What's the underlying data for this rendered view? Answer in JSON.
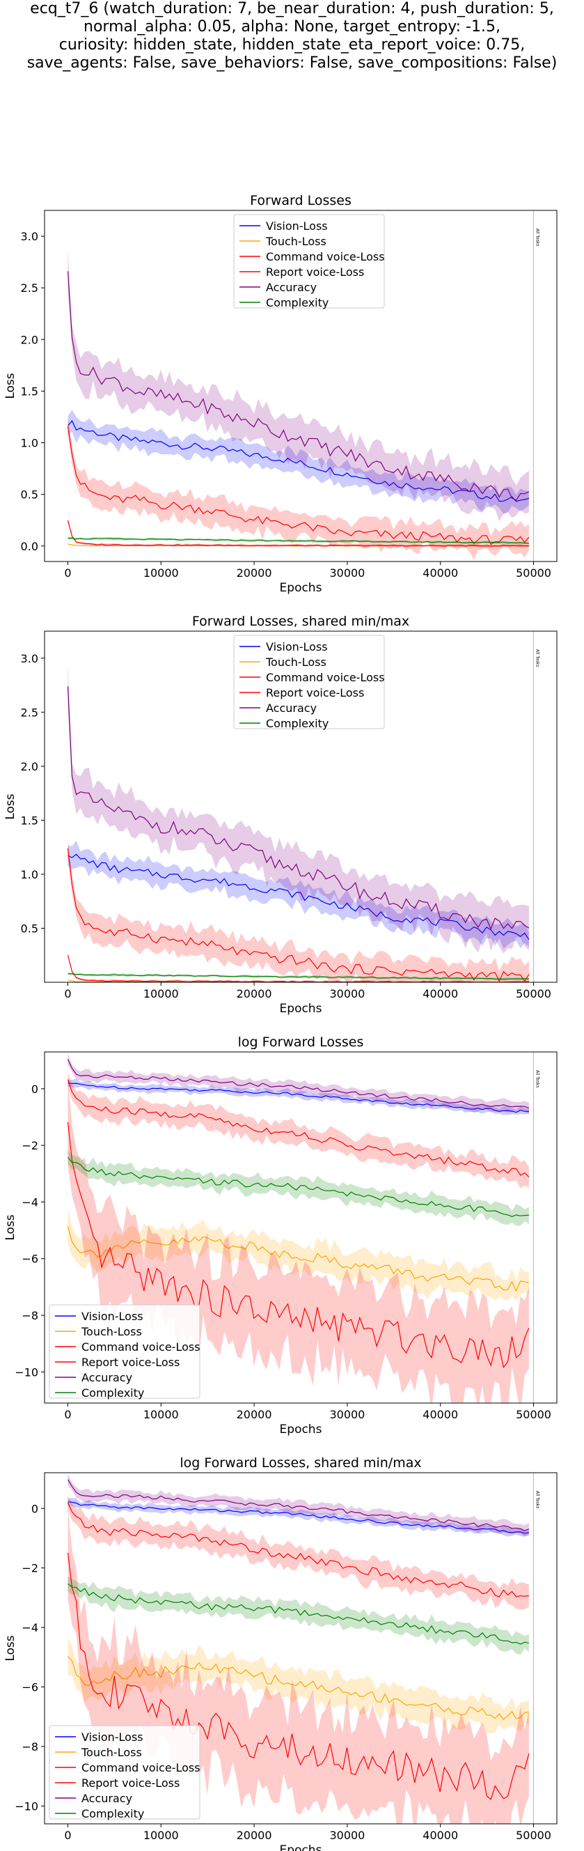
{
  "suptitle_lines": [
    "ecq_t7_6 (watch_duration: 7, be_near_duration: 4, push_duration: 5,",
    "normal_alpha: 0.05, alpha: None, target_entropy: -1.5,",
    "curiosity: hidden_state, hidden_state_eta_report_voice: 0.75,",
    "save_agents: False, save_behaviors: False, save_compositions: False)"
  ],
  "colors": {
    "Vision-Loss": "#0000ff",
    "Touch-Loss": "#ffa500",
    "Command voice-Loss": "#ff0000",
    "Report voice-Loss": "#ff0000",
    "Accuracy": "#800080",
    "Complexity": "#008000"
  },
  "chart_data": [
    {
      "type": "line",
      "title": "Forward Losses",
      "xlabel": "Epochs",
      "ylabel": "Loss",
      "xlim": [
        -2500,
        52500
      ],
      "ylim": [
        -0.15,
        3.25
      ],
      "x_ticks": [
        0,
        10000,
        20000,
        30000,
        40000,
        50000
      ],
      "y_ticks": [
        0.0,
        0.5,
        1.0,
        1.5,
        2.0,
        2.5,
        3.0
      ],
      "y_tick_labels": [
        "0.0",
        "0.5",
        "1.0",
        "1.5",
        "2.0",
        "2.5",
        "3.0"
      ],
      "vline": {
        "x": 50000,
        "label": "All Tasks"
      },
      "legend": {
        "position": "upper center"
      },
      "x": [
        0,
        500,
        1000,
        2000,
        3000,
        5000,
        7500,
        10000,
        12500,
        15000,
        17500,
        20000,
        22500,
        25000,
        27500,
        30000,
        32500,
        35000,
        37500,
        40000,
        42500,
        45000,
        47500,
        49500
      ],
      "series": [
        {
          "name": "Vision-Loss",
          "values": [
            1.2,
            1.18,
            1.15,
            1.12,
            1.1,
            1.05,
            1.02,
            1.0,
            0.97,
            0.95,
            0.92,
            0.88,
            0.85,
            0.8,
            0.75,
            0.7,
            0.65,
            0.6,
            0.58,
            0.55,
            0.52,
            0.48,
            0.45,
            0.43
          ],
          "spread": 0.08
        },
        {
          "name": "Touch-Loss",
          "values": [
            0.02,
            0.01,
            0.005,
            0.004,
            0.004,
            0.004,
            0.003,
            0.003,
            0.003,
            0.003,
            0.003,
            0.002,
            0.002,
            0.002,
            0.002,
            0.002,
            0.002,
            0.002,
            0.002,
            0.002,
            0.002,
            0.001,
            0.001,
            0.001
          ],
          "spread": 0.002
        },
        {
          "name": "Command voice-Loss",
          "values": [
            1.2,
            0.9,
            0.65,
            0.55,
            0.5,
            0.45,
            0.45,
            0.4,
            0.38,
            0.35,
            0.3,
            0.25,
            0.22,
            0.2,
            0.15,
            0.12,
            0.12,
            0.1,
            0.1,
            0.08,
            0.07,
            0.06,
            0.05,
            0.05
          ],
          "spread": 0.1
        },
        {
          "name": "Report voice-Loss",
          "values": [
            0.25,
            0.08,
            0.03,
            0.02,
            0.015,
            0.012,
            0.01,
            0.01,
            0.008,
            0.008,
            0.007,
            0.006,
            0.005,
            0.005,
            0.004,
            0.004,
            0.004,
            0.003,
            0.003,
            0.003,
            0.003,
            0.003,
            0.003,
            0.003
          ],
          "spread": 0.01
        },
        {
          "name": "Accuracy",
          "values": [
            2.7,
            1.9,
            1.75,
            1.7,
            1.65,
            1.6,
            1.5,
            1.45,
            1.4,
            1.35,
            1.25,
            1.2,
            1.1,
            1.05,
            0.95,
            0.9,
            0.8,
            0.75,
            0.7,
            0.65,
            0.6,
            0.55,
            0.5,
            0.5
          ],
          "spread": 0.15
        },
        {
          "name": "Complexity",
          "values": [
            0.08,
            0.08,
            0.07,
            0.07,
            0.07,
            0.07,
            0.065,
            0.065,
            0.06,
            0.06,
            0.055,
            0.055,
            0.05,
            0.05,
            0.048,
            0.045,
            0.045,
            0.04,
            0.04,
            0.038,
            0.035,
            0.035,
            0.033,
            0.03
          ],
          "spread": 0.01
        }
      ]
    },
    {
      "type": "line",
      "title": "Forward Losses, shared min/max",
      "xlabel": "Epochs",
      "ylabel": "Loss",
      "xlim": [
        -2500,
        52500
      ],
      "ylim": [
        0.0,
        3.25
      ],
      "x_ticks": [
        0,
        10000,
        20000,
        30000,
        40000,
        50000
      ],
      "y_ticks": [
        0.5,
        1.0,
        1.5,
        2.0,
        2.5,
        3.0
      ],
      "y_tick_labels": [
        "0.5",
        "1.0",
        "1.5",
        "2.0",
        "2.5",
        "3.0"
      ],
      "vline": {
        "x": 50000,
        "label": "All Tasks"
      },
      "legend": {
        "position": "upper center"
      },
      "x": [
        0,
        500,
        1000,
        2000,
        3000,
        5000,
        7500,
        10000,
        12500,
        15000,
        17500,
        20000,
        22500,
        25000,
        27500,
        30000,
        32500,
        35000,
        37500,
        40000,
        42500,
        45000,
        47500,
        49500
      ],
      "series": [
        {
          "name": "Vision-Loss",
          "values": [
            1.2,
            1.18,
            1.15,
            1.12,
            1.1,
            1.05,
            1.02,
            1.0,
            0.97,
            0.95,
            0.92,
            0.88,
            0.85,
            0.8,
            0.75,
            0.7,
            0.65,
            0.6,
            0.58,
            0.55,
            0.52,
            0.48,
            0.45,
            0.43
          ],
          "spread": 0.08
        },
        {
          "name": "Touch-Loss",
          "values": [
            0.02,
            0.01,
            0.005,
            0.004,
            0.004,
            0.004,
            0.003,
            0.003,
            0.003,
            0.003,
            0.003,
            0.002,
            0.002,
            0.002,
            0.002,
            0.002,
            0.002,
            0.002,
            0.002,
            0.002,
            0.002,
            0.001,
            0.001,
            0.001
          ],
          "spread": 0.002
        },
        {
          "name": "Command voice-Loss",
          "values": [
            1.2,
            0.9,
            0.65,
            0.55,
            0.5,
            0.45,
            0.45,
            0.4,
            0.38,
            0.35,
            0.3,
            0.25,
            0.22,
            0.2,
            0.15,
            0.12,
            0.12,
            0.1,
            0.1,
            0.08,
            0.07,
            0.06,
            0.05,
            0.05
          ],
          "spread": 0.1
        },
        {
          "name": "Report voice-Loss",
          "values": [
            0.25,
            0.08,
            0.03,
            0.02,
            0.015,
            0.012,
            0.01,
            0.01,
            0.008,
            0.008,
            0.007,
            0.006,
            0.005,
            0.005,
            0.004,
            0.004,
            0.004,
            0.003,
            0.003,
            0.003,
            0.003,
            0.003,
            0.003,
            0.003
          ],
          "spread": 0.01
        },
        {
          "name": "Accuracy",
          "values": [
            2.7,
            1.9,
            1.75,
            1.7,
            1.65,
            1.6,
            1.5,
            1.45,
            1.4,
            1.35,
            1.25,
            1.2,
            1.1,
            1.05,
            0.95,
            0.9,
            0.8,
            0.75,
            0.7,
            0.65,
            0.6,
            0.55,
            0.5,
            0.5
          ],
          "spread": 0.15
        },
        {
          "name": "Complexity",
          "values": [
            0.08,
            0.08,
            0.07,
            0.07,
            0.07,
            0.07,
            0.065,
            0.065,
            0.06,
            0.06,
            0.055,
            0.055,
            0.05,
            0.05,
            0.048,
            0.045,
            0.045,
            0.04,
            0.04,
            0.038,
            0.035,
            0.035,
            0.033,
            0.03
          ],
          "spread": 0.01
        }
      ]
    },
    {
      "type": "line",
      "title": "log Forward Losses",
      "xlabel": "Epochs",
      "ylabel": "Loss",
      "xlim": [
        -2500,
        52500
      ],
      "ylim": [
        -11.1,
        1.3
      ],
      "x_ticks": [
        0,
        10000,
        20000,
        30000,
        40000,
        50000
      ],
      "y_ticks": [
        0,
        -2,
        -4,
        -6,
        -8,
        -10
      ],
      "y_tick_labels": [
        "0",
        "−2",
        "−4",
        "−6",
        "−8",
        "−10"
      ],
      "vline": {
        "x": 50000,
        "label": "All Tasks"
      },
      "legend": {
        "position": "lower left"
      },
      "x": [
        0,
        500,
        1000,
        2000,
        3000,
        5000,
        7500,
        10000,
        12500,
        15000,
        17500,
        20000,
        22500,
        25000,
        27500,
        30000,
        32500,
        35000,
        37500,
        40000,
        42500,
        45000,
        47500,
        49500
      ],
      "series": [
        {
          "name": "Vision-Loss",
          "values": [
            0.2,
            0.18,
            0.15,
            0.12,
            0.1,
            0.05,
            0.02,
            0.0,
            -0.03,
            -0.05,
            -0.08,
            -0.12,
            -0.15,
            -0.2,
            -0.28,
            -0.35,
            -0.42,
            -0.5,
            -0.55,
            -0.6,
            -0.65,
            -0.72,
            -0.78,
            -0.8
          ],
          "spread": 0.1
        },
        {
          "name": "Touch-Loss",
          "values": [
            -4.9,
            -5.3,
            -5.6,
            -5.8,
            -5.8,
            -5.6,
            -5.5,
            -5.5,
            -5.4,
            -5.3,
            -5.5,
            -5.6,
            -5.8,
            -5.9,
            -6.0,
            -6.2,
            -6.3,
            -6.4,
            -6.6,
            -6.7,
            -6.8,
            -6.9,
            -7.0,
            -6.9
          ],
          "spread": 0.4
        },
        {
          "name": "Command voice-Loss",
          "values": [
            0.2,
            -0.1,
            -0.4,
            -0.6,
            -0.7,
            -0.8,
            -0.8,
            -0.9,
            -0.95,
            -1.0,
            -1.2,
            -1.4,
            -1.5,
            -1.6,
            -1.8,
            -2.0,
            -2.1,
            -2.3,
            -2.4,
            -2.5,
            -2.6,
            -2.8,
            -2.9,
            -3.0
          ],
          "spread": 0.3
        },
        {
          "name": "Report voice-Loss",
          "values": [
            -1.4,
            -2.8,
            -3.8,
            -5.0,
            -5.8,
            -6.2,
            -6.5,
            -6.8,
            -7.0,
            -7.4,
            -7.6,
            -7.8,
            -8.0,
            -8.2,
            -8.3,
            -8.4,
            -8.6,
            -8.7,
            -8.8,
            -9.0,
            -9.1,
            -9.2,
            -9.3,
            -8.5
          ],
          "spread": 1.3
        },
        {
          "name": "Accuracy",
          "values": [
            1.0,
            0.7,
            0.5,
            0.45,
            0.45,
            0.42,
            0.4,
            0.35,
            0.3,
            0.25,
            0.2,
            0.15,
            0.1,
            0.05,
            -0.05,
            -0.1,
            -0.2,
            -0.28,
            -0.35,
            -0.42,
            -0.5,
            -0.58,
            -0.65,
            -0.7
          ],
          "spread": 0.15
        },
        {
          "name": "Complexity",
          "values": [
            -2.5,
            -2.6,
            -2.7,
            -2.8,
            -2.9,
            -3.0,
            -3.1,
            -3.2,
            -3.2,
            -3.3,
            -3.3,
            -3.4,
            -3.4,
            -3.5,
            -3.6,
            -3.7,
            -3.8,
            -3.9,
            -4.0,
            -4.1,
            -4.2,
            -4.3,
            -4.4,
            -4.5
          ],
          "spread": 0.25
        }
      ]
    },
    {
      "type": "line",
      "title": "log Forward Losses, shared min/max",
      "xlabel": "Epochs",
      "ylabel": "Loss",
      "xlim": [
        -2500,
        52500
      ],
      "ylim": [
        -10.6,
        1.2
      ],
      "x_ticks": [
        0,
        10000,
        20000,
        30000,
        40000,
        50000
      ],
      "y_ticks": [
        0,
        -2,
        -4,
        -6,
        -8,
        -10
      ],
      "y_tick_labels": [
        "0",
        "−2",
        "−4",
        "−6",
        "−8",
        "−10"
      ],
      "vline": {
        "x": 50000,
        "label": "All Tasks"
      },
      "legend": {
        "position": "lower left"
      },
      "x": [
        0,
        500,
        1000,
        2000,
        3000,
        5000,
        7500,
        10000,
        12500,
        15000,
        17500,
        20000,
        22500,
        25000,
        27500,
        30000,
        32500,
        35000,
        37500,
        40000,
        42500,
        45000,
        47500,
        49500
      ],
      "series": [
        {
          "name": "Vision-Loss",
          "values": [
            0.2,
            0.18,
            0.15,
            0.12,
            0.1,
            0.05,
            0.02,
            0.0,
            -0.03,
            -0.05,
            -0.08,
            -0.12,
            -0.15,
            -0.2,
            -0.28,
            -0.35,
            -0.42,
            -0.5,
            -0.55,
            -0.6,
            -0.65,
            -0.72,
            -0.78,
            -0.8
          ],
          "spread": 0.1
        },
        {
          "name": "Touch-Loss",
          "values": [
            -4.9,
            -5.3,
            -5.6,
            -5.8,
            -5.8,
            -5.6,
            -5.5,
            -5.5,
            -5.4,
            -5.3,
            -5.5,
            -5.6,
            -5.8,
            -5.9,
            -6.0,
            -6.2,
            -6.3,
            -6.4,
            -6.6,
            -6.7,
            -6.8,
            -6.9,
            -7.0,
            -6.9
          ],
          "spread": 0.4
        },
        {
          "name": "Command voice-Loss",
          "values": [
            0.2,
            -0.1,
            -0.4,
            -0.6,
            -0.7,
            -0.8,
            -0.8,
            -0.9,
            -0.95,
            -1.0,
            -1.2,
            -1.4,
            -1.5,
            -1.6,
            -1.8,
            -2.0,
            -2.1,
            -2.3,
            -2.4,
            -2.5,
            -2.6,
            -2.8,
            -2.9,
            -3.0
          ],
          "spread": 0.3
        },
        {
          "name": "Report voice-Loss",
          "values": [
            -1.4,
            -2.8,
            -3.8,
            -5.0,
            -5.8,
            -6.2,
            -6.5,
            -6.8,
            -7.0,
            -7.4,
            -7.6,
            -7.8,
            -8.0,
            -8.2,
            -8.3,
            -8.4,
            -8.6,
            -8.7,
            -8.8,
            -9.0,
            -9.1,
            -9.2,
            -9.3,
            -8.5
          ],
          "spread": 1.3
        },
        {
          "name": "Accuracy",
          "values": [
            1.0,
            0.7,
            0.5,
            0.45,
            0.45,
            0.42,
            0.4,
            0.35,
            0.3,
            0.25,
            0.2,
            0.15,
            0.1,
            0.05,
            -0.05,
            -0.1,
            -0.2,
            -0.28,
            -0.35,
            -0.42,
            -0.5,
            -0.58,
            -0.65,
            -0.7
          ],
          "spread": 0.15
        },
        {
          "name": "Complexity",
          "values": [
            -2.5,
            -2.6,
            -2.7,
            -2.8,
            -2.9,
            -3.0,
            -3.1,
            -3.2,
            -3.2,
            -3.3,
            -3.3,
            -3.4,
            -3.4,
            -3.5,
            -3.6,
            -3.7,
            -3.8,
            -3.9,
            -4.0,
            -4.1,
            -4.2,
            -4.3,
            -4.4,
            -4.5
          ],
          "spread": 0.25
        }
      ]
    }
  ]
}
